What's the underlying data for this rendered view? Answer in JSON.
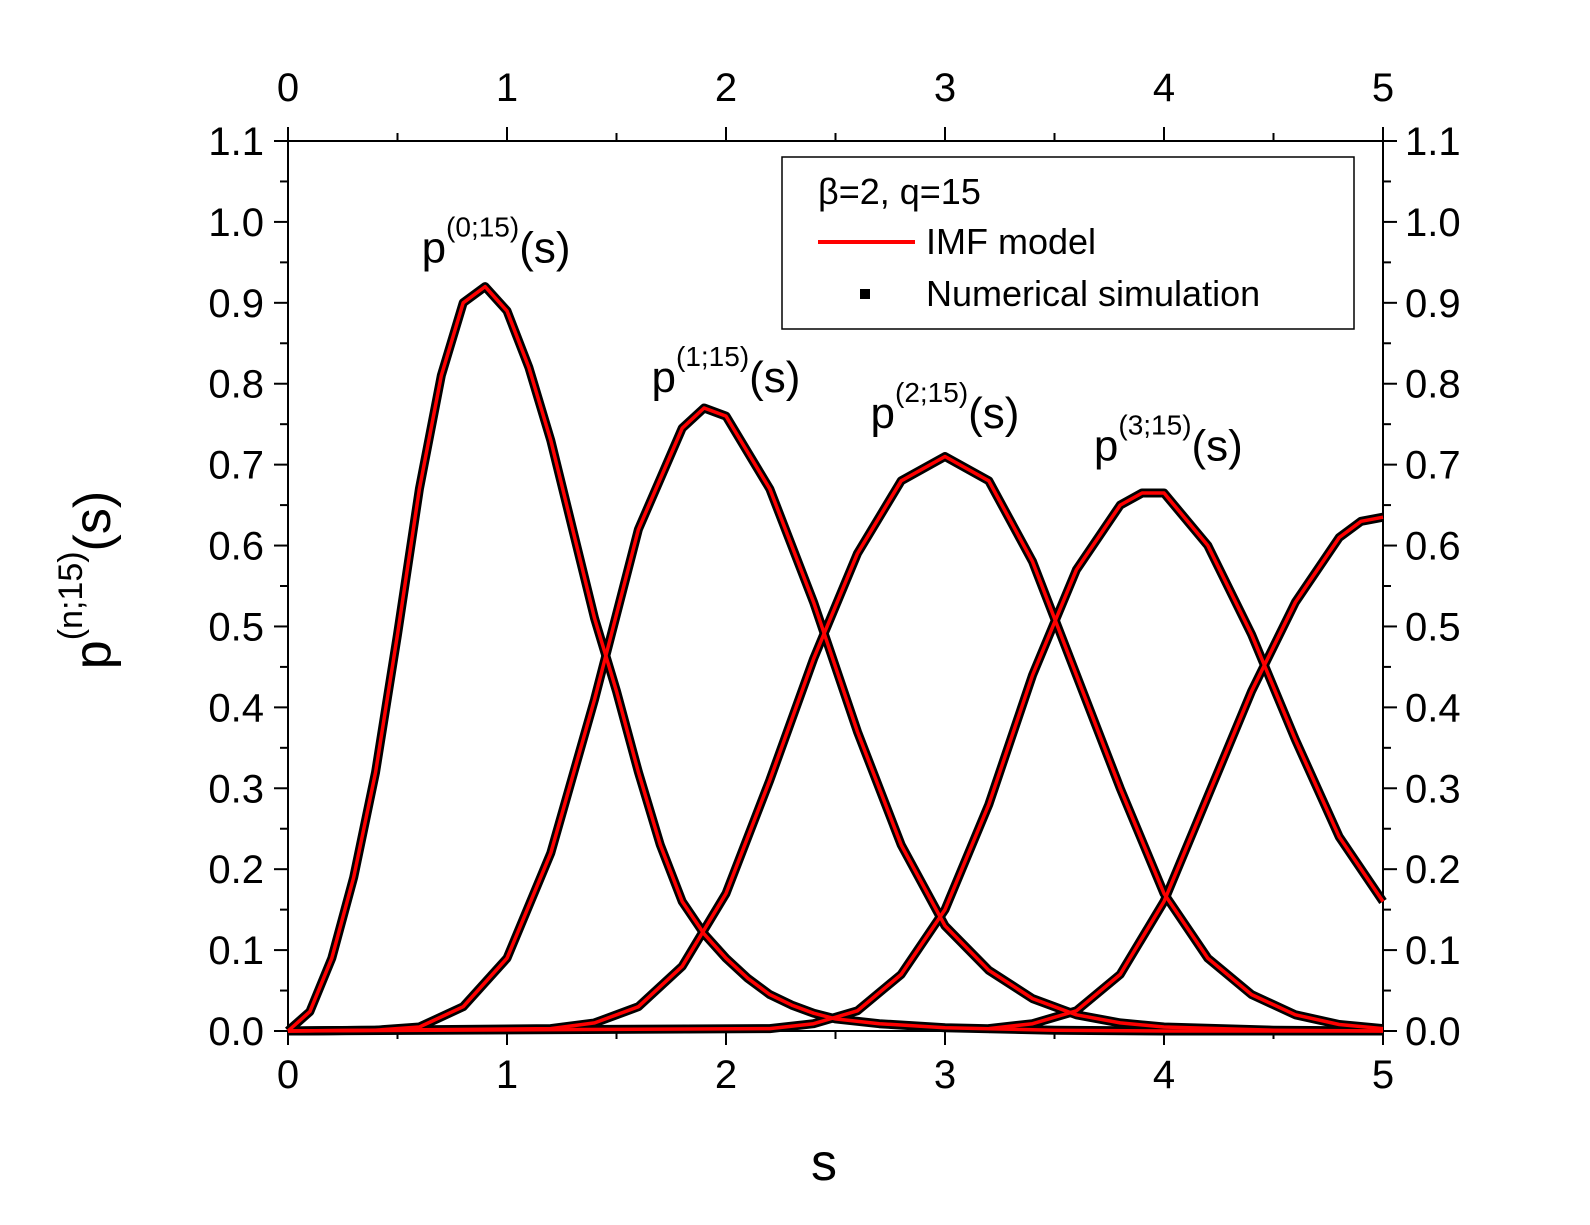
{
  "chart_data": {
    "type": "line",
    "xlabel": "s",
    "ylabel_base": "p",
    "ylabel_sup": "(n;15)",
    "ylabel_tail": "(s)",
    "xlim": [
      0,
      5
    ],
    "ylim": [
      0,
      1.1
    ],
    "x_ticks": [
      "0",
      "1",
      "2",
      "3",
      "4",
      "5"
    ],
    "y_ticks": [
      "0.0",
      "0.1",
      "0.2",
      "0.3",
      "0.4",
      "0.5",
      "0.6",
      "0.7",
      "0.8",
      "0.9",
      "1.0",
      "1.1"
    ],
    "mirror_axes": true,
    "grid": false,
    "legend": {
      "position": "top-right",
      "header": "β=2, q=15",
      "entries": [
        {
          "label": "IMF model",
          "style": "line",
          "color": "#ff0000"
        },
        {
          "label": "Numerical simulation",
          "style": "square",
          "color": "#000000"
        }
      ]
    },
    "annotations": [
      {
        "base": "p",
        "sup": "(0;15)",
        "tail": "(s)",
        "x": 0.95,
        "y": 0.95
      },
      {
        "base": "p",
        "sup": "(1;15)",
        "tail": "(s)",
        "x": 2.0,
        "y": 0.79
      },
      {
        "base": "p",
        "sup": "(2;15)",
        "tail": "(s)",
        "x": 3.0,
        "y": 0.745
      },
      {
        "base": "p",
        "sup": "(3;15)",
        "tail": "(s)",
        "x": 4.02,
        "y": 0.705
      }
    ],
    "series": [
      {
        "name": "IMF model",
        "curves": [
          {
            "x": [
              0,
              0.1,
              0.2,
              0.3,
              0.4,
              0.5,
              0.6,
              0.7,
              0.8,
              0.9,
              1.0,
              1.1,
              1.2,
              1.3,
              1.4,
              1.5,
              1.6,
              1.7,
              1.8,
              1.9,
              2.0,
              2.1,
              2.2,
              2.3,
              2.4,
              2.5,
              2.7,
              3.0,
              3.5,
              4.0,
              5.0
            ],
            "y": [
              0,
              0.024,
              0.09,
              0.19,
              0.32,
              0.49,
              0.67,
              0.81,
              0.9,
              0.92,
              0.89,
              0.82,
              0.73,
              0.62,
              0.51,
              0.42,
              0.32,
              0.23,
              0.16,
              0.12,
              0.09,
              0.065,
              0.045,
              0.032,
              0.022,
              0.015,
              0.009,
              0.004,
              0.001,
              0,
              0
            ]
          },
          {
            "x": [
              0,
              0.4,
              0.6,
              0.8,
              1.0,
              1.2,
              1.4,
              1.6,
              1.8,
              1.9,
              2.0,
              2.2,
              2.4,
              2.6,
              2.8,
              3.0,
              3.2,
              3.4,
              3.6,
              3.8,
              4.0,
              4.5,
              5.0
            ],
            "y": [
              0,
              0.001,
              0.005,
              0.03,
              0.09,
              0.22,
              0.41,
              0.62,
              0.745,
              0.77,
              0.76,
              0.67,
              0.53,
              0.37,
              0.23,
              0.13,
              0.075,
              0.04,
              0.02,
              0.01,
              0.005,
              0.001,
              0
            ]
          },
          {
            "x": [
              0,
              1.2,
              1.4,
              1.6,
              1.8,
              2.0,
              2.2,
              2.4,
              2.6,
              2.8,
              3.0,
              3.2,
              3.4,
              3.6,
              3.8,
              4.0,
              4.2,
              4.4,
              4.6,
              4.8,
              5.0
            ],
            "y": [
              0,
              0.003,
              0.01,
              0.03,
              0.08,
              0.17,
              0.31,
              0.46,
              0.59,
              0.68,
              0.71,
              0.68,
              0.58,
              0.44,
              0.3,
              0.17,
              0.09,
              0.045,
              0.02,
              0.008,
              0.003
            ]
          },
          {
            "x": [
              0,
              2.2,
              2.4,
              2.6,
              2.8,
              3.0,
              3.2,
              3.4,
              3.6,
              3.8,
              3.9,
              4.0,
              4.2,
              4.4,
              4.6,
              4.8,
              5.0
            ],
            "y": [
              0,
              0.003,
              0.009,
              0.025,
              0.07,
              0.15,
              0.28,
              0.44,
              0.57,
              0.65,
              0.665,
              0.665,
              0.6,
              0.49,
              0.36,
              0.24,
              0.16
            ]
          },
          {
            "x": [
              3.2,
              3.4,
              3.6,
              3.8,
              4.0,
              4.2,
              4.4,
              4.6,
              4.8,
              4.9,
              5.0
            ],
            "y": [
              0.003,
              0.009,
              0.025,
              0.07,
              0.16,
              0.29,
              0.42,
              0.53,
              0.61,
              0.63,
              0.635
            ]
          }
        ]
      },
      {
        "name": "Numerical simulation",
        "curves": "same as IMF model with sampling noise"
      }
    ]
  }
}
